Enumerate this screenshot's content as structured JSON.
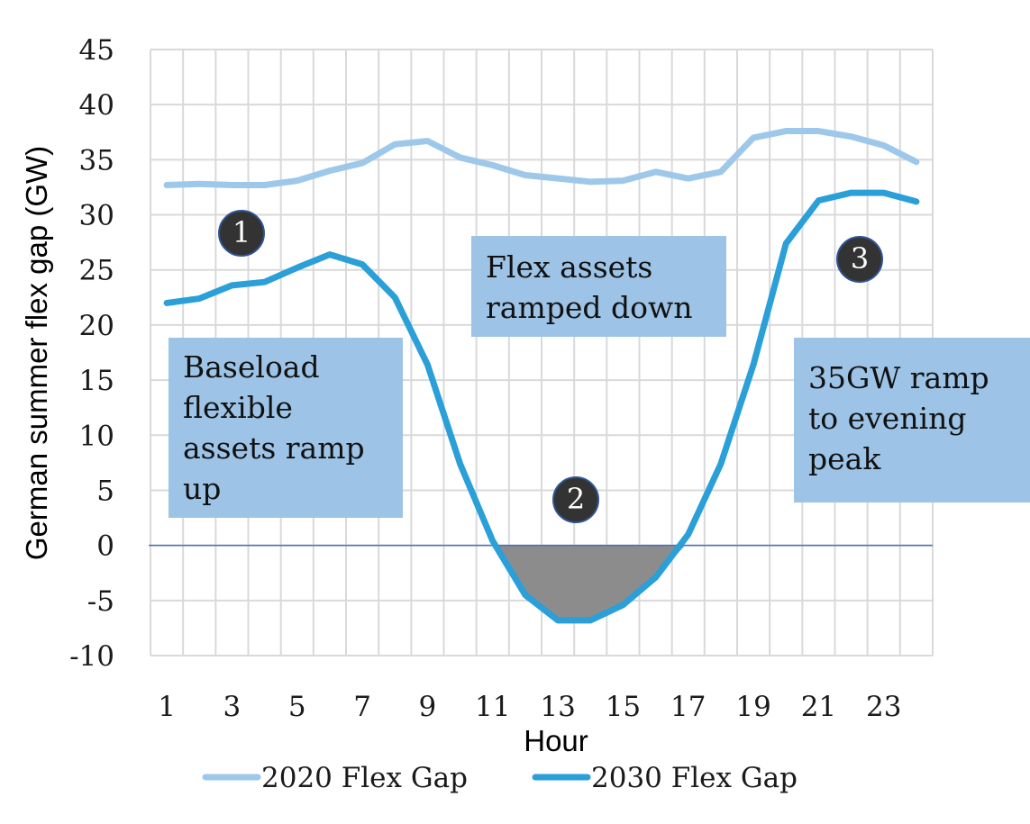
{
  "chart_data": {
    "type": "line",
    "title": "",
    "xlabel": "Hour",
    "ylabel": "German summer flex gap (GW)",
    "x": [
      1,
      2,
      3,
      4,
      5,
      6,
      7,
      8,
      9,
      10,
      11,
      12,
      13,
      14,
      15,
      16,
      17,
      18,
      19,
      20,
      21,
      22,
      23,
      24
    ],
    "x_tick_labels": [
      "1",
      "3",
      "5",
      "7",
      "9",
      "11",
      "13",
      "15",
      "17",
      "19",
      "21",
      "23"
    ],
    "y_tick_labels": [
      "45",
      "40",
      "35",
      "30",
      "25",
      "20",
      "15",
      "10",
      "5",
      "0",
      "-5",
      "-10"
    ],
    "ylim": [
      -10,
      45
    ],
    "grid": true,
    "legend_position": "bottom",
    "series": [
      {
        "name": "2020 Flex Gap",
        "color": "#9dc8ea",
        "values": [
          32.7,
          32.8,
          32.7,
          32.7,
          33.1,
          34.0,
          34.7,
          36.4,
          36.7,
          35.2,
          34.5,
          33.6,
          33.3,
          33.0,
          33.1,
          33.9,
          33.3,
          33.9,
          37.0,
          37.6,
          37.6,
          37.1,
          36.3,
          34.8
        ]
      },
      {
        "name": "2030 Flex Gap",
        "color": "#2a9fd8",
        "values": [
          22.0,
          22.4,
          23.6,
          23.9,
          25.2,
          26.4,
          25.5,
          22.5,
          16.4,
          7.4,
          0.4,
          -4.5,
          -6.8,
          -6.8,
          -5.4,
          -2.9,
          1.0,
          7.4,
          16.4,
          27.4,
          31.3,
          32.0,
          32.0,
          31.2
        ]
      }
    ],
    "shaded_region": {
      "description": "negative flex gap area below zero",
      "color": "#8c8c8c",
      "x_range": [
        11,
        16.9
      ]
    },
    "annotations": [
      {
        "id": "1",
        "marker": "1",
        "text_lines": [
          "Baseload",
          "flexible",
          "assets ramp",
          "up"
        ]
      },
      {
        "id": "2",
        "marker": "2",
        "text_lines": [
          "Flex assets",
          "ramped down"
        ]
      },
      {
        "id": "3",
        "marker": "3",
        "text_lines": [
          "35GW ramp",
          "to evening",
          "peak"
        ]
      }
    ],
    "colors": {
      "annotation_box": "#9dc3e6",
      "marker_fill": "#333333",
      "marker_border": "#2f5597",
      "zero_line": "#4472c4",
      "grid": "#d9d9d9"
    }
  }
}
